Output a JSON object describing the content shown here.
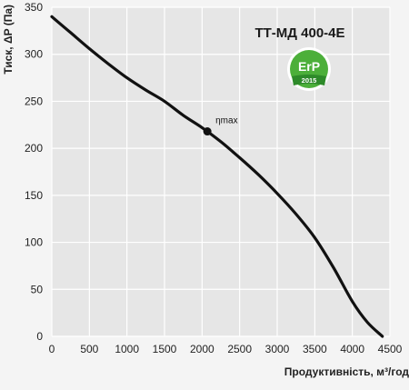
{
  "chart_data": {
    "type": "line",
    "title": "ТТ-МД 400-4Е",
    "xlabel": "Продуктивність, м³/год",
    "ylabel": "Тиск, ΔP (Па)",
    "xlim": [
      0,
      4500
    ],
    "ylim": [
      0,
      350
    ],
    "x_ticks": [
      "0",
      "500",
      "1000",
      "1500",
      "2000",
      "2500",
      "3000",
      "3500",
      "4000",
      "4500"
    ],
    "y_ticks": [
      "0",
      "50",
      "100",
      "150",
      "200",
      "250",
      "300",
      "350"
    ],
    "grid": true,
    "series": [
      {
        "x": [
          0,
          250,
          500,
          750,
          1000,
          1250,
          1500,
          1750,
          2000,
          2250,
          2500,
          2750,
          3000,
          3250,
          3500,
          3750,
          4000,
          4200,
          4400
        ],
        "y": [
          340,
          323,
          306,
          290,
          275,
          262,
          250,
          235,
          222,
          207,
          190,
          172,
          152,
          130,
          105,
          73,
          37,
          15,
          0
        ]
      }
    ],
    "annotations": [
      {
        "text": "ηmax",
        "x": 2070,
        "y": 218
      }
    ],
    "colors": {
      "line": "#111111",
      "grid": "#ffffff",
      "background": "#e6e6e6"
    }
  },
  "badge": {
    "top": "ErP",
    "bottom": "2015",
    "colors": {
      "outer": "#ffffff",
      "inner": "#4caf3a",
      "ribbon": "#2e8a2a"
    }
  }
}
